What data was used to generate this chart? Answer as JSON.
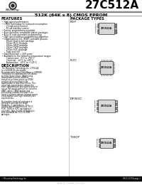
{
  "title": "27C512A",
  "subtitle": "512K (64K x 8) CMOS EPROM",
  "brand": "Microchip",
  "bg_color": "#ffffff",
  "features_title": "FEATURES",
  "features": [
    "High speed performance",
    "CMOS Technology for reduced consumption",
    "  20 mA active current",
    "  50 uA standby current",
    "Factory programming available",
    "Auto inventory compatible plastic packages",
    "Auto ID code automatic programming",
    "High speed address programming algorithm",
    "Organizations in E, JEDEC standard pinouts:",
    "  28-pin Dual-In-line package",
    "  32-pin PLCC Package",
    "  28-pin SSOP package",
    "  28-pin TSOP package",
    "  28-pin SOIC package",
    "  Tape and reel",
    "Data Retention > 200 years",
    "Available for the following temperature ranges:",
    "  Commercial:   0°C to +70°C",
    "  Industrial:  -40°C to +85°C",
    "  Automotive:  -40°C to +125°C"
  ],
  "description_title": "DESCRIPTION",
  "description1": "The Microchip Technology Inc. 27C512A is a 524288 bit electrically Programmable Read-Only Memory (EPROM). The device is organized 65,536 words by 8-bit (byte) inputs. Addressing instructions from an address transition or from power-up (POR) enables all string data to be downloaded in less than 50 ms. This ultra high speed device allows the most sophisticated microprocessors to run at full speed without the need for WAIT states. CMOS design and processing enables this part to be used in systems where reduced power consumption and high reliability are requirements.",
  "description2": "A complete family of packages is offered to provide the most flexibility in applications. For surface-mount applications, PLCC, PDIP, TSOP or SOIC packaging is available. Tape or reel packaging is also available for PLCC or SOIC packages.",
  "package_title": "PACKAGE TYPES",
  "pkg_labels": [
    "PDIP",
    "PLCC",
    "DIP/SOIC",
    "TSSOP"
  ],
  "pkg_chip_label": "27C512A",
  "footer_left": "© Microchip Technology Inc.",
  "footer_right": "DS11 11756 page 1",
  "footer_bottom": "DS-d    1    1-d  2001    M-L  1.0 1"
}
